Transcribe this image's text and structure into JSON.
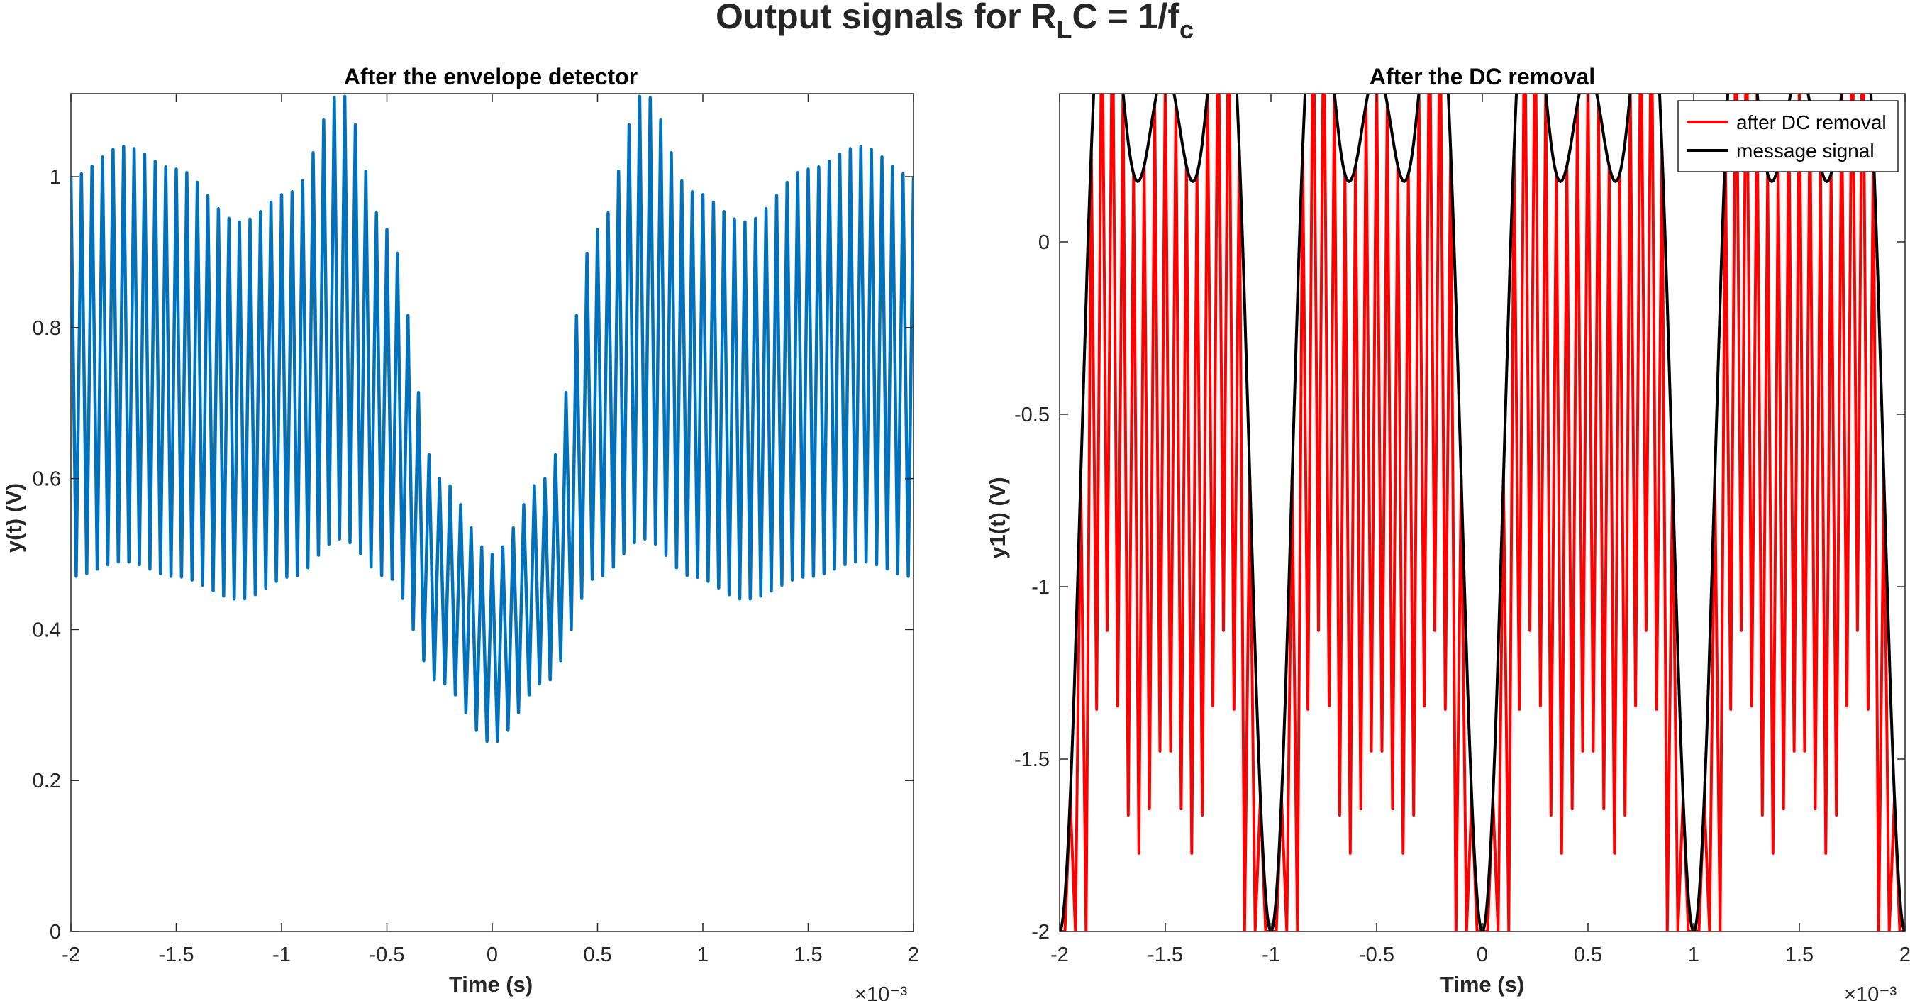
{
  "figure_title": {
    "main": "Output signals for R",
    "sub1": "L",
    "mid": "C = 1/f",
    "sub2": "c"
  },
  "chart_data": [
    {
      "type": "line",
      "title": "After the envelope detector",
      "xlabel": "Time (s)",
      "ylabel": "y(t) (V)",
      "xlim": [
        -0.002,
        0.002
      ],
      "ylim": [
        0,
        1.11
      ],
      "x_exponent_label": "×10⁻³",
      "xticks": [
        -2,
        -1.5,
        -1,
        -0.5,
        0,
        0.5,
        1,
        1.5,
        2
      ],
      "xticklabels": [
        "-2",
        "-1.5",
        "-1",
        "-0.5",
        "0",
        "0.5",
        "1",
        "1.5",
        "2"
      ],
      "yticks": [
        0,
        0.2,
        0.4,
        0.6,
        0.8,
        1
      ],
      "yticklabels": [
        "0",
        "0.2",
        "0.4",
        "0.6",
        "0.8",
        "1"
      ],
      "grid": false,
      "legend": "none",
      "series": [
        {
          "color": "#0072BD",
          "kind": "rectified-carrier",
          "carrier_cycles": 80,
          "peak_envelope_x": [
            -2.0,
            -1.75,
            -1.5,
            -1.2,
            -0.95,
            -0.72,
            -0.5,
            -0.25,
            0,
            0.25,
            0.5,
            0.72,
            0.95,
            1.2,
            1.5,
            1.75,
            2.0
          ],
          "peak_envelope_y": [
            1.0,
            1.04,
            1.01,
            0.94,
            0.98,
            1.11,
            0.93,
            0.6,
            0.5,
            0.6,
            0.93,
            1.11,
            0.98,
            0.94,
            1.01,
            1.04,
            1.0
          ],
          "trough_envelope_x": [
            -2.0,
            -1.75,
            -1.5,
            -1.2,
            -0.95,
            -0.72,
            -0.5,
            -0.25,
            0,
            0.25,
            0.5,
            0.72,
            0.95,
            1.2,
            1.5,
            1.75,
            2.0
          ],
          "trough_envelope_y": [
            0.47,
            0.49,
            0.47,
            0.44,
            0.47,
            0.52,
            0.47,
            0.33,
            0.25,
            0.33,
            0.47,
            0.52,
            0.47,
            0.44,
            0.47,
            0.49,
            0.47
          ]
        }
      ]
    },
    {
      "type": "line",
      "title": "After the DC removal",
      "xlabel": "Time (s)",
      "ylabel": "y1(t) (V)",
      "xlim": [
        -0.002,
        0.002
      ],
      "ylim": [
        -2,
        0.43
      ],
      "x_exponent_label": "×10⁻³",
      "xticks": [
        -2,
        -1.5,
        -1,
        -0.5,
        0,
        0.5,
        1,
        1.5,
        2
      ],
      "xticklabels": [
        "-2",
        "-1.5",
        "-1",
        "-0.5",
        "0",
        "0.5",
        "1",
        "1.5",
        "2"
      ],
      "yticks": [
        -2,
        -1.5,
        -1,
        -0.5,
        0
      ],
      "yticklabels": [
        "-2",
        "-1.5",
        "-1",
        "-0.5",
        "0"
      ],
      "grid": false,
      "legend": "top-right",
      "series": [
        {
          "name": "after DC removal",
          "color": "#FF0000",
          "kind": "sampled-message",
          "carrier_cycles": 80,
          "floor": -2
        },
        {
          "name": "message signal",
          "color": "#000000",
          "kind": "message",
          "formula_terms": [
            {
              "amplitude": -0.75,
              "frequency_hz": 1000
            },
            {
              "amplitude": -0.75,
              "frequency_hz": 2000
            },
            {
              "amplitude": -0.5,
              "frequency_hz": 3000
            }
          ]
        }
      ]
    }
  ]
}
